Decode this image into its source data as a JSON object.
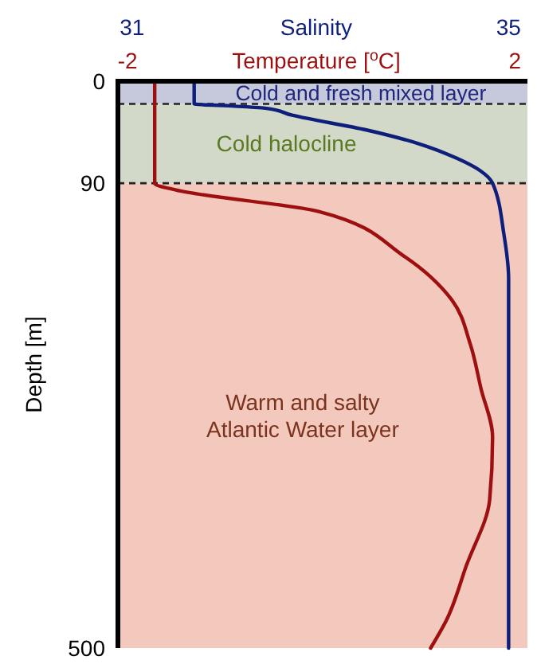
{
  "chart_data": {
    "type": "line",
    "xlabel": "Temperature [$^{o}$C]",
    "x2label": "Salinity",
    "ylabel": "Depth [m]",
    "xlim": [
      -2.1,
      2.13
    ],
    "xticks": [
      -2,
      2
    ],
    "x2lim": [
      30.85,
      35.2
    ],
    "x2ticks": [
      31,
      35
    ],
    "ylim": [
      500,
      0
    ],
    "yticks": [
      0,
      90,
      500
    ],
    "series": [
      {
        "color": "#0d1f7a",
        "axis": "x2",
        "x": [
          31.66,
          31.66,
          32.09,
          32.43,
          32.7,
          33.49,
          34.04,
          34.45,
          34.7,
          34.83,
          34.95,
          35,
          35
        ],
        "values": [
          0,
          20,
          22,
          24,
          30,
          43,
          55,
          68,
          79,
          90,
          135,
          174,
          500
        ]
      },
      {
        "color": "#9e1010",
        "x": [
          -1.72,
          -1.72,
          -1.5,
          -0.02,
          0.85,
          1.35,
          1.54,
          1.65,
          1.77,
          1.74,
          1.5,
          1.29,
          1.13
        ],
        "values": [
          0,
          90,
          96,
          115,
          154,
          193,
          232,
          271,
          314,
          369,
          427,
          476,
          500
        ]
      }
    ],
    "bands": [
      {
        "axis": "y",
        "from": 0,
        "to": 20,
        "label": "Cold and fresh mixed layer",
        "color": "#c6c8dc"
      },
      {
        "axis": "y",
        "from": 20,
        "to": 90,
        "label": "Cold halocline",
        "color": "#d3d9c8"
      },
      {
        "axis": "y",
        "from": 90,
        "to": 500,
        "label": "Warm and salty Atlantic Water layer",
        "color": "#f4c9bd"
      }
    ],
    "ref_lines": [
      {
        "axis": "y",
        "value": 20,
        "line_style": "dashed",
        "color": "#222222"
      },
      {
        "axis": "y",
        "value": 90,
        "line_style": "dashed",
        "color": "#222222"
      }
    ],
    "line_style": "solid",
    "grid": false
  }
}
